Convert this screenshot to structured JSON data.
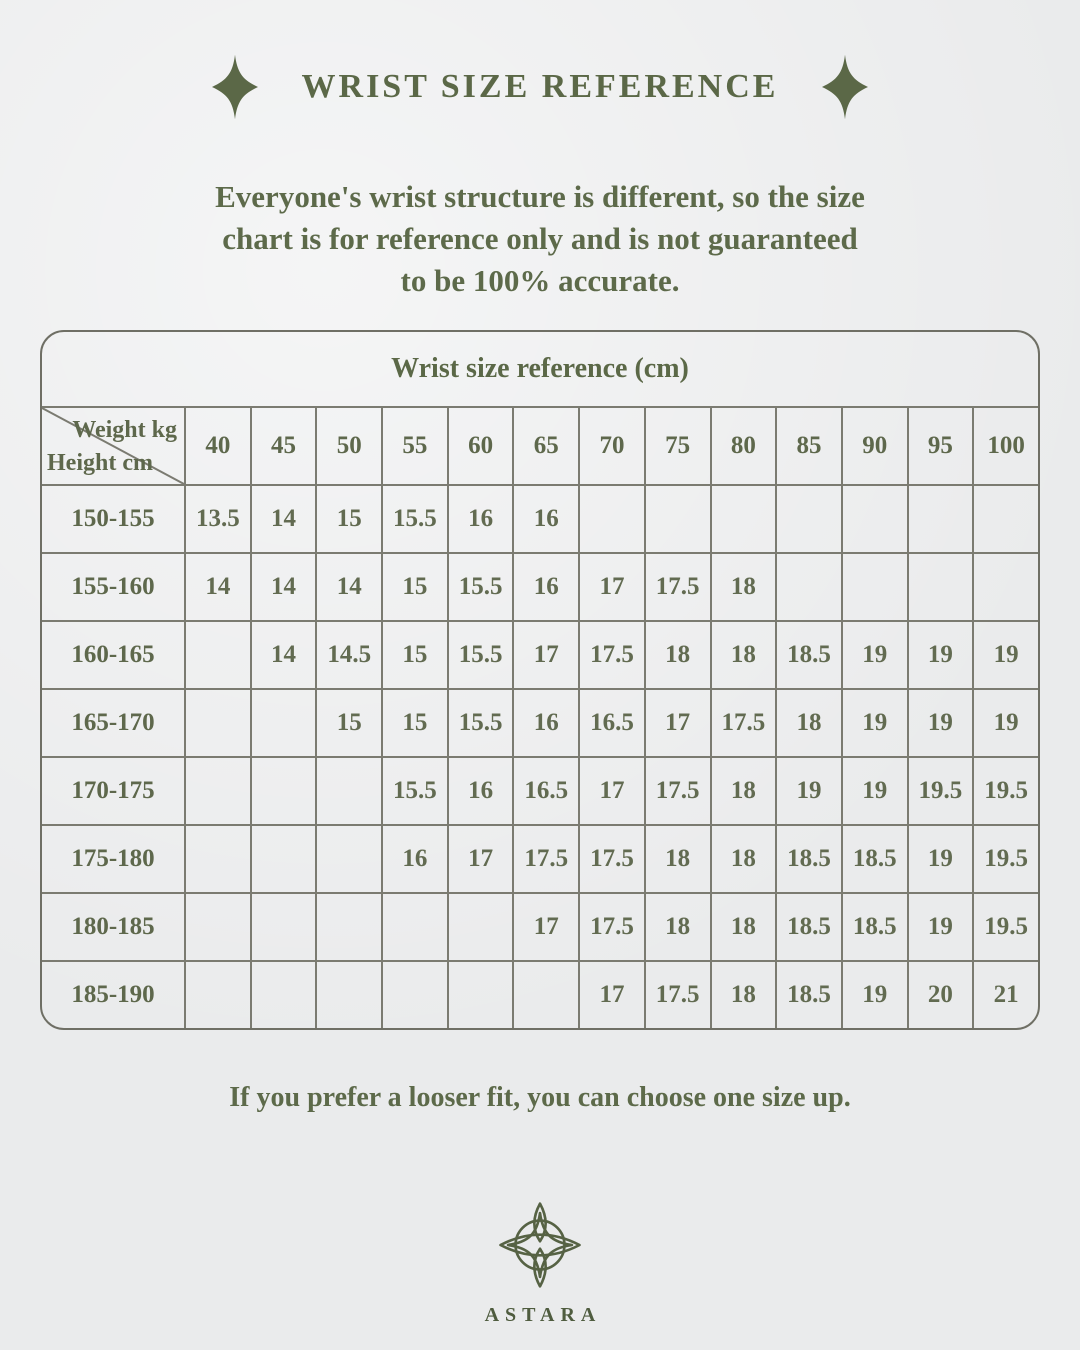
{
  "page": {
    "title": "WRIST SIZE REFERENCE",
    "intro_lines": [
      "Everyone's wrist structure is different, so the size",
      "chart is for reference only and is not guaranteed",
      "to be 100% accurate."
    ],
    "footer_note": "If you prefer a looser fit, you can choose one size up.",
    "brand": "ASTARA"
  },
  "icons": {
    "left_ornament": "sparkle-icon",
    "right_ornament": "sparkle-icon",
    "brand_mark": "compass-rose-logo"
  },
  "colors": {
    "background": "#eaebec",
    "heading_green": "#5b6847",
    "paragraph_green": "#5d6a4a",
    "table_text": "#626b51",
    "grid_line": "#7b7b71",
    "card_border": "#6f6f65"
  },
  "chart_data": {
    "type": "table",
    "title": "Wrist size reference (cm)",
    "corner": {
      "top_right": "Weight kg",
      "bottom_left": "Height cm"
    },
    "weight_columns": [
      "40",
      "45",
      "50",
      "55",
      "60",
      "65",
      "70",
      "75",
      "80",
      "85",
      "90",
      "95",
      "100"
    ],
    "rows": [
      {
        "height": "150-155",
        "values": [
          "13.5",
          "14",
          "15",
          "15.5",
          "16",
          "16",
          "",
          "",
          "",
          "",
          "",
          "",
          ""
        ]
      },
      {
        "height": "155-160",
        "values": [
          "14",
          "14",
          "14",
          "15",
          "15.5",
          "16",
          "17",
          "17.5",
          "18",
          "",
          "",
          "",
          ""
        ]
      },
      {
        "height": "160-165",
        "values": [
          "",
          "14",
          "14.5",
          "15",
          "15.5",
          "17",
          "17.5",
          "18",
          "18",
          "18.5",
          "19",
          "19",
          "19"
        ]
      },
      {
        "height": "165-170",
        "values": [
          "",
          "",
          "15",
          "15",
          "15.5",
          "16",
          "16.5",
          "17",
          "17.5",
          "18",
          "19",
          "19",
          "19"
        ]
      },
      {
        "height": "170-175",
        "values": [
          "",
          "",
          "",
          "15.5",
          "16",
          "16.5",
          "17",
          "17.5",
          "18",
          "19",
          "19",
          "19.5",
          "19.5"
        ]
      },
      {
        "height": "175-180",
        "values": [
          "",
          "",
          "",
          "16",
          "17",
          "17.5",
          "17.5",
          "18",
          "18",
          "18.5",
          "18.5",
          "19",
          "19.5"
        ]
      },
      {
        "height": "180-185",
        "values": [
          "",
          "",
          "",
          "",
          "",
          "17",
          "17.5",
          "18",
          "18",
          "18.5",
          "18.5",
          "19",
          "19.5"
        ]
      },
      {
        "height": "185-190",
        "values": [
          "",
          "",
          "",
          "",
          "",
          "",
          "17",
          "17.5",
          "18",
          "18.5",
          "19",
          "20",
          "21"
        ]
      }
    ]
  }
}
